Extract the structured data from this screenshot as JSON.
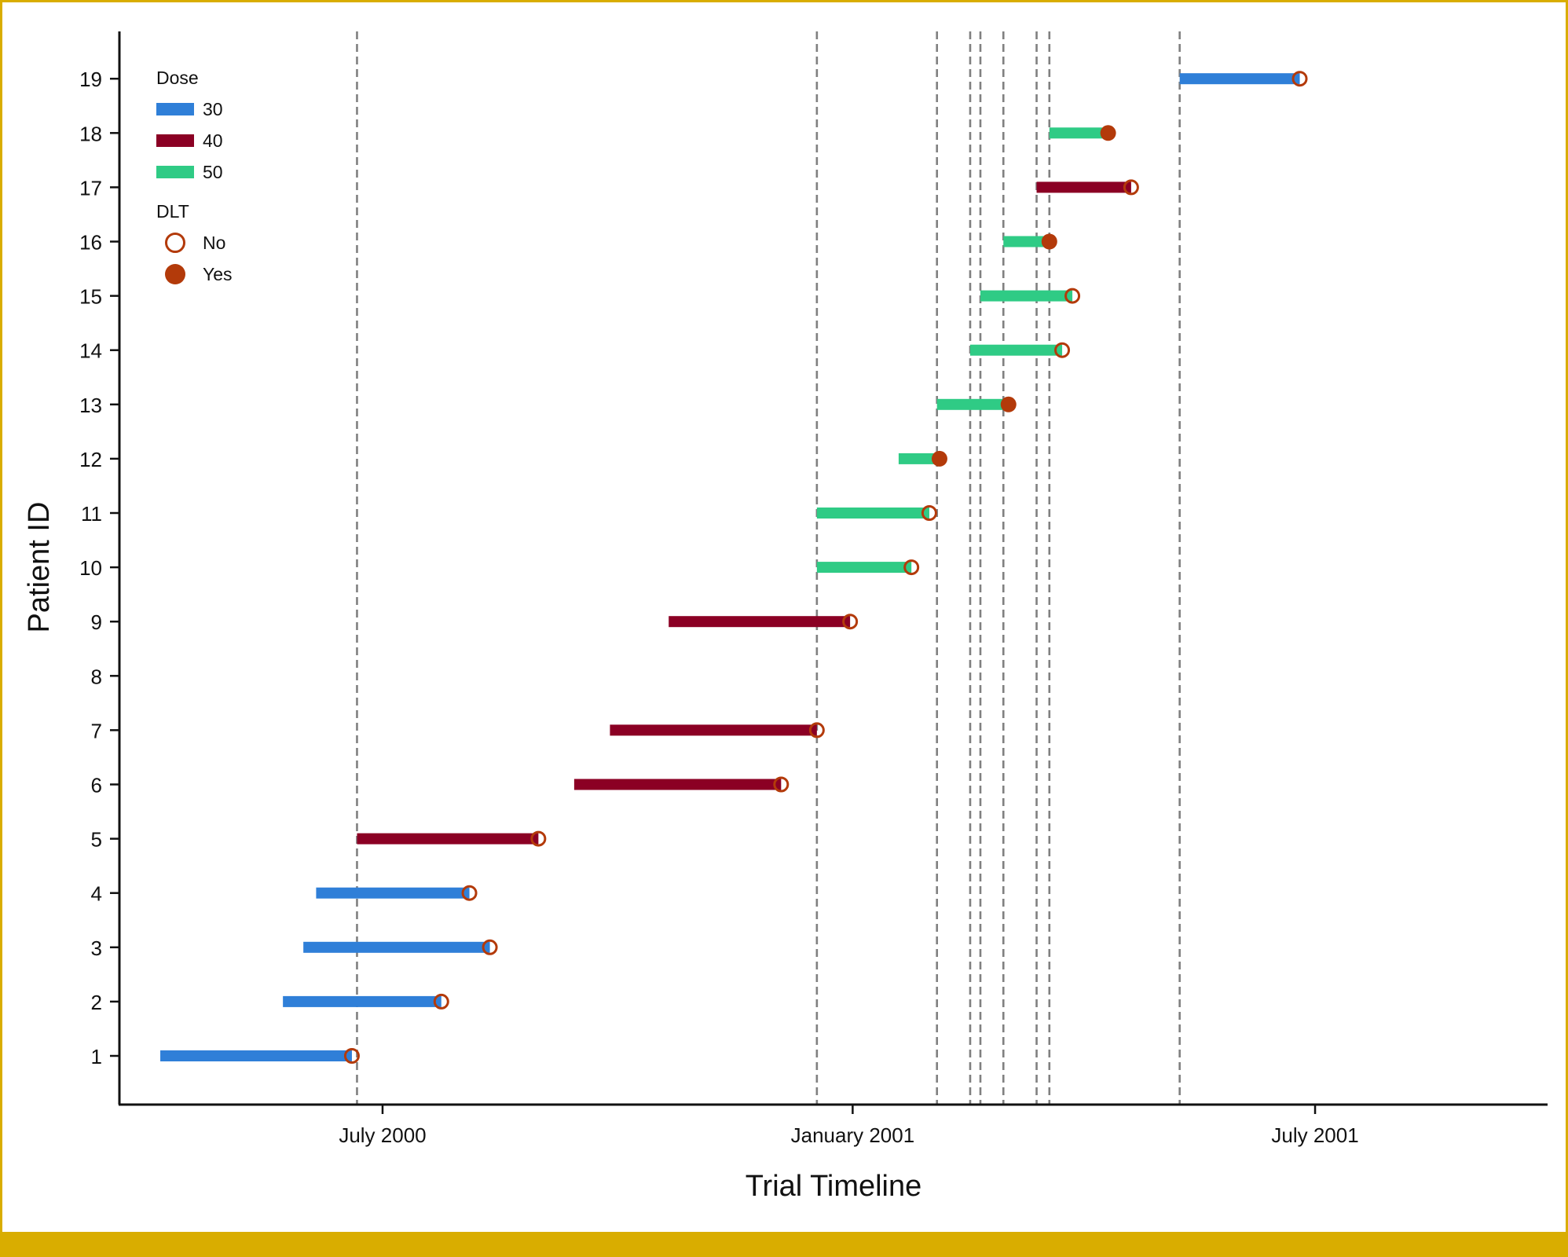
{
  "chart_data": {
    "type": "timeline",
    "xlabel": "Trial Timeline",
    "ylabel": "Patient ID",
    "x_ticks": [
      {
        "label": "July 2000",
        "date": "2000-07-01"
      },
      {
        "label": "January 2001",
        "date": "2001-01-01"
      },
      {
        "label": "July 2001",
        "date": "2001-07-01"
      }
    ],
    "xlim": [
      "2000-03-20",
      "2001-09-30"
    ],
    "y_ticks": [
      "1",
      "2",
      "3",
      "4",
      "5",
      "6",
      "7",
      "8",
      "9",
      "10",
      "11",
      "12",
      "13",
      "14",
      "15",
      "16",
      "17",
      "18",
      "19"
    ],
    "ylim": [
      0.1,
      19.9
    ],
    "grid": "vertical dashed lines at dose-decision dates",
    "decision_dates": [
      "2000-06-21",
      "2000-12-18",
      "2001-02-03",
      "2001-02-16",
      "2001-02-20",
      "2001-03-01",
      "2001-03-14",
      "2001-03-19",
      "2001-05-09"
    ],
    "dose_colors": {
      "30": "#2f7fd8",
      "40": "#8b0024",
      "50": "#2fcb85"
    },
    "dlt_color": "#b33a0a",
    "patients": [
      {
        "id": 1,
        "dose": "30",
        "start": "2000-04-05",
        "end": "2000-06-19",
        "dlt": "No"
      },
      {
        "id": 2,
        "dose": "30",
        "start": "2000-05-23",
        "end": "2000-07-24",
        "dlt": "No"
      },
      {
        "id": 3,
        "dose": "30",
        "start": "2000-05-31",
        "end": "2000-08-12",
        "dlt": "No"
      },
      {
        "id": 4,
        "dose": "30",
        "start": "2000-06-05",
        "end": "2000-08-04",
        "dlt": "No"
      },
      {
        "id": 5,
        "dose": "40",
        "start": "2000-06-21",
        "end": "2000-08-31",
        "dlt": "No"
      },
      {
        "id": 6,
        "dose": "40",
        "start": "2000-09-14",
        "end": "2000-12-04",
        "dlt": "No"
      },
      {
        "id": 7,
        "dose": "40",
        "start": "2000-09-28",
        "end": "2000-12-18",
        "dlt": "No"
      },
      {
        "id": 8,
        "dose": "",
        "start": "",
        "end": "",
        "dlt": ""
      },
      {
        "id": 9,
        "dose": "40",
        "start": "2000-10-21",
        "end": "2000-12-31",
        "dlt": "No"
      },
      {
        "id": 10,
        "dose": "50",
        "start": "2000-12-18",
        "end": "2001-01-24",
        "dlt": "No"
      },
      {
        "id": 11,
        "dose": "50",
        "start": "2000-12-18",
        "end": "2001-01-31",
        "dlt": "No"
      },
      {
        "id": 12,
        "dose": "50",
        "start": "2001-01-19",
        "end": "2001-02-04",
        "dlt": "Yes"
      },
      {
        "id": 13,
        "dose": "50",
        "start": "2001-02-03",
        "end": "2001-03-03",
        "dlt": "Yes"
      },
      {
        "id": 14,
        "dose": "50",
        "start": "2001-02-16",
        "end": "2001-03-24",
        "dlt": "No"
      },
      {
        "id": 15,
        "dose": "50",
        "start": "2001-02-20",
        "end": "2001-03-28",
        "dlt": "No"
      },
      {
        "id": 16,
        "dose": "50",
        "start": "2001-03-01",
        "end": "2001-03-19",
        "dlt": "Yes"
      },
      {
        "id": 17,
        "dose": "40",
        "start": "2001-03-14",
        "end": "2001-04-20",
        "dlt": "No"
      },
      {
        "id": 18,
        "dose": "50",
        "start": "2001-03-19",
        "end": "2001-04-11",
        "dlt": "Yes"
      },
      {
        "id": 19,
        "dose": "30",
        "start": "2001-05-09",
        "end": "2001-06-25",
        "dlt": "No"
      }
    ],
    "legend": {
      "placement": "top-left",
      "dose_title": "Dose",
      "dose_items": [
        {
          "label": "30",
          "dose": "30"
        },
        {
          "label": "40",
          "dose": "40"
        },
        {
          "label": "50",
          "dose": "50"
        }
      ],
      "dlt_title": "DLT",
      "dlt_items": [
        {
          "label": "No",
          "dlt": "No"
        },
        {
          "label": "Yes",
          "dlt": "Yes"
        }
      ]
    }
  }
}
